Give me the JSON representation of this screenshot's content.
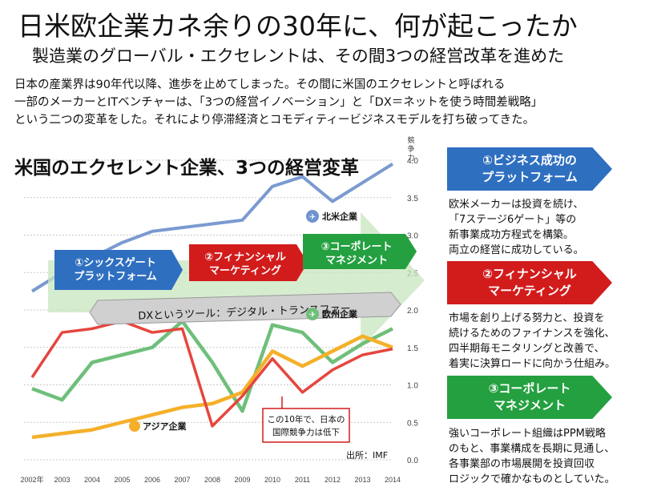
{
  "title": "日米欧企業カネ余りの30年に、何が起こったか",
  "subtitle": "製造業のグローバル・エクセレントは、その間3つの経営改革を進めた",
  "intro": [
    "日本の産業界は90年代以降、進歩を止めてしまった。その間に米国のエクセレントと呼ばれる",
    "一部のメーカーとITベンチャーは、「3つの経営イノベーション」と「DX＝ネットを使う時間差戦略」",
    "という二つの変革をした。それにより停滞経済とコモディティービジネスモデルを打ち破ってきた。"
  ],
  "chart_title": "米国のエクセレント企業、3つの経営変革",
  "arrow": {
    "steps": [
      {
        "text": "①シックスゲート\nプラットフォーム",
        "color": "#2e6fc0"
      },
      {
        "text": "②フィナンシャル\nマーケティング",
        "color": "#d21c1c"
      },
      {
        "text": "③コーポレート\nマネジメント",
        "color": "#24a040"
      }
    ],
    "dx": "DXというツール：デジタル・トランスファー"
  },
  "labels": {
    "na": "北米企業",
    "eu": "欧州企業",
    "asia": "アジア企業",
    "callout": [
      "この10年で、日本の",
      "国際競争力は低下"
    ],
    "source": "出所：IMF"
  },
  "chart_data": {
    "type": "line",
    "ylabel": "競争力",
    "ylim": [
      0,
      4.0
    ],
    "yticks": [
      "0.0",
      "0.5",
      "1.0",
      "1.5",
      "2.0",
      "2.5",
      "3.0",
      "3.5",
      "4.0"
    ],
    "x": [
      "2002年",
      "2003",
      "2004",
      "2005",
      "2006",
      "2007",
      "2008",
      "2009",
      "2010",
      "2011",
      "2012",
      "2013",
      "2014"
    ],
    "series": [
      {
        "name": "北米企業",
        "color": "#7a9ad0",
        "values": [
          2.25,
          2.5,
          2.7,
          2.9,
          3.05,
          3.1,
          3.15,
          3.2,
          3.65,
          3.78,
          3.45,
          3.7,
          3.95
        ]
      },
      {
        "name": "欧州企業",
        "color": "#6fbf7a",
        "values": [
          0.95,
          0.8,
          1.3,
          1.4,
          1.5,
          1.85,
          1.3,
          0.65,
          1.8,
          1.7,
          1.3,
          1.55,
          1.75
        ]
      },
      {
        "name": "アジア企業",
        "color": "#f4b02a",
        "values": [
          0.3,
          0.35,
          0.4,
          0.5,
          0.6,
          0.7,
          0.75,
          0.9,
          1.45,
          1.25,
          1.45,
          1.65,
          1.5
        ]
      },
      {
        "name": "",
        "color": "#e5463e",
        "values": [
          1.1,
          1.7,
          1.75,
          1.85,
          1.7,
          1.75,
          0.45,
          0.85,
          1.35,
          0.9,
          1.2,
          1.4,
          1.48
        ]
      }
    ]
  },
  "panels": [
    {
      "title": "①ビジネス成功の\nプラットフォーム",
      "color": "#2e6fc0",
      "desc": [
        "欧米メーカーは投資を続け、",
        "「7ステージ6ゲート」等の",
        "新事業成功方程式を構築。",
        "両立の経営に成功している。"
      ]
    },
    {
      "title": "②フィナンシャル\nマーケティング",
      "color": "#d21c1c",
      "desc": [
        "市場を創り上げる努力と、投資を",
        "続けるためのファイナンスを強化、",
        "四半期毎モニタリングと改善で、",
        "着実に決算ロードに向かう仕組み。"
      ]
    },
    {
      "title": "③コーポレート\nマネジメント",
      "color": "#24a040",
      "desc": [
        "強いコーポレート組織はPPM戦略",
        "のもと、事業構成を長期に見通し、",
        "各事業部の市場展開を投資回収",
        "ロジックで確かなものとしていた。"
      ]
    }
  ]
}
